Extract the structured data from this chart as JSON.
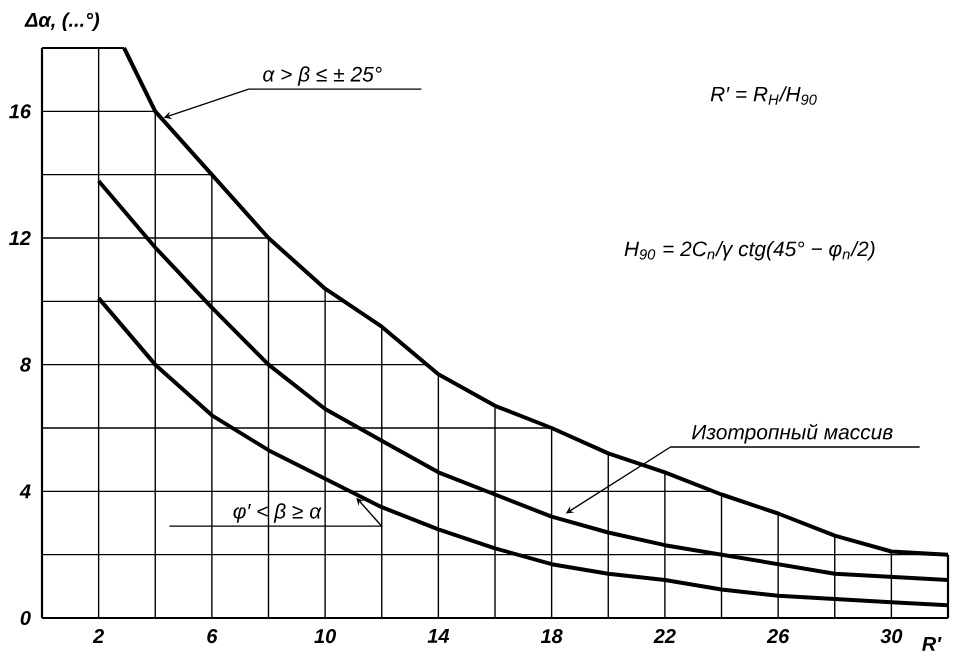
{
  "chart_data": {
    "type": "line",
    "xlabel": "R′",
    "ylabel": "Δα, (...°)",
    "xlim": [
      0,
      32
    ],
    "ylim": [
      0,
      18
    ],
    "xticks": [
      2,
      {
        "value": 4,
        "label": null
      },
      6,
      {
        "value": 8,
        "label": null
      },
      10,
      {
        "value": 12,
        "label": null
      },
      14,
      {
        "value": 16,
        "label": null
      },
      18,
      {
        "value": 20,
        "label": null
      },
      22,
      {
        "value": 24,
        "label": null
      },
      26,
      {
        "value": 28,
        "label": null
      },
      30,
      {
        "value": 32,
        "label": null
      }
    ],
    "yticks": [
      0,
      {
        "value": 2,
        "label": null
      },
      4,
      {
        "value": 6,
        "label": null
      },
      8,
      {
        "value": 10,
        "label": null
      },
      12,
      {
        "value": 14,
        "label": null
      },
      16,
      {
        "value": 18,
        "label": null
      }
    ],
    "grid": true,
    "series": [
      {
        "color": "#000000",
        "x": [
          2.9,
          4,
          6,
          8,
          10,
          12,
          14,
          16,
          18,
          20,
          22,
          24,
          26,
          28,
          30,
          32
        ],
        "values": [
          18,
          16,
          14,
          12,
          10.4,
          9.2,
          7.7,
          6.7,
          6.0,
          5.2,
          4.6,
          3.9,
          3.3,
          2.6,
          2.1,
          2.0
        ]
      },
      {
        "color": "#000000",
        "x": [
          2,
          4,
          6,
          8,
          10,
          12,
          14,
          16,
          18,
          20,
          22,
          24,
          26,
          28,
          30,
          32
        ],
        "values": [
          13.8,
          11.7,
          9.8,
          8.0,
          6.6,
          5.6,
          4.6,
          3.9,
          3.2,
          2.7,
          2.3,
          2.0,
          1.7,
          1.4,
          1.3,
          1.2
        ]
      },
      {
        "color": "#000000",
        "x": [
          2,
          4,
          6,
          8,
          10,
          12,
          14,
          16,
          18,
          20,
          22,
          24,
          26,
          28,
          30,
          32
        ],
        "values": [
          10.1,
          8.0,
          6.4,
          5.3,
          4.4,
          3.5,
          2.8,
          2.2,
          1.7,
          1.4,
          1.2,
          0.9,
          0.7,
          0.6,
          0.5,
          0.4
        ]
      }
    ],
    "annotations": [
      "R′ = R$_{H}$/H$_{90}$",
      "H$_{90}$ = 2C$_{n}$/γ ctg(45° − φ$_{n}$/2)",
      {
        "text": "α > β ≤ ± 25°",
        "x": 4.3,
        "y": 15.8
      },
      {
        "text": "Изотропный массив",
        "x": 18.5,
        "y": 3.3
      },
      {
        "text": "φ′ < β ≥ α",
        "x": 11.1,
        "y": 3.8
      }
    ]
  }
}
